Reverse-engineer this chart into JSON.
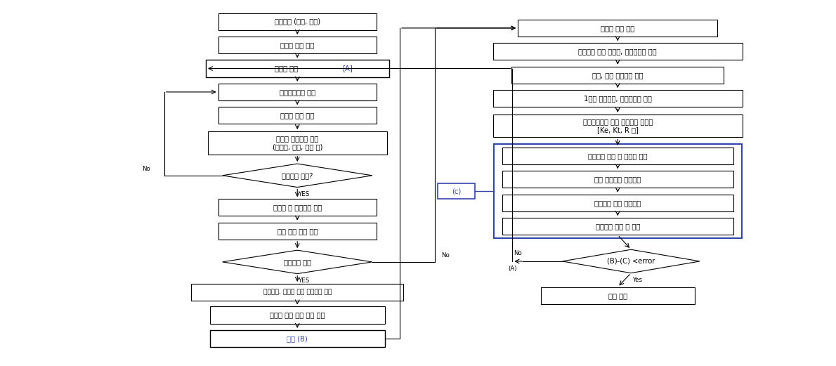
{
  "bg_color": "#ffffff",
  "box_color": "#ffffff",
  "box_edge": "#000000",
  "blue_edge": "#3344aa",
  "text_color": "#000000",
  "blue_text": "#3344aa",
  "font_size": 7.2,
  "left": {
    "b1": [
      0.355,
      0.92,
      0.19,
      0.052,
      "기본사양 (속도, 출력)"
    ],
    "b2": [
      0.355,
      0.848,
      0.19,
      0.052,
      "회전자 형상 결정"
    ],
    "b3": [
      0.355,
      0.776,
      0.22,
      0.052,
      "장하비 설정 [A]"
    ],
    "b4": [
      0.355,
      0.704,
      0.19,
      0.052,
      "공극자속밀도 결정"
    ],
    "b5": [
      0.355,
      0.632,
      0.19,
      0.052,
      "고정자 권선 설계"
    ],
    "b6": [
      0.355,
      0.548,
      0.215,
      0.07,
      "회전자 기본사양 설계\n(단면적, 길이, 두께 등)"
    ],
    "d1": [
      0.355,
      0.448,
      0.18,
      0.072,
      "기본사양 만족?"
    ],
    "b7": [
      0.355,
      0.35,
      0.19,
      0.052,
      "기전력 및 토크상수 계산"
    ],
    "b8": [
      0.355,
      0.278,
      0.19,
      0.052,
      "동선 전류 밀도 계산"
    ],
    "d2": [
      0.355,
      0.183,
      0.18,
      0.072,
      "전류밀도 만족"
    ],
    "b9": [
      0.355,
      0.09,
      0.255,
      0.052,
      "자석계자, 전기자 철심 요크두께 결정"
    ],
    "b10": [
      0.355,
      0.02,
      0.21,
      0.052,
      "전기자 철심 슬롯 면적 계산"
    ],
    "b11": [
      0.355,
      -0.052,
      0.21,
      0.052,
      "결과 (B)"
    ]
  },
  "right": {
    "r1": [
      0.74,
      0.9,
      0.24,
      0.052,
      "전동기 사양 입력"
    ],
    "r2": [
      0.74,
      0.828,
      0.3,
      0.052,
      "자석계자 평균 단면적, 등가치수비 산출"
    ],
    "r3": [
      0.74,
      0.756,
      0.255,
      0.052,
      "누설, 유효 퍼미언스 계산"
    ],
    "r4": [
      0.74,
      0.684,
      0.3,
      0.052,
      "1극의 유효자속, 유효기자력 계산"
    ],
    "r5": [
      0.74,
      0.6,
      0.3,
      0.07,
      "자기회로법에 의한 회로정수 재산출\n[Ke, Kt, R 등]"
    ],
    "r6": [
      0.74,
      0.508,
      0.278,
      0.052,
      "정격시의 토크 및 전기자 전류"
    ],
    "r7": [
      0.74,
      0.436,
      0.278,
      0.052,
      "정격 토크시의 회전속도"
    ],
    "r8": [
      0.74,
      0.364,
      0.278,
      0.052,
      "정격시의 동선 전류밀도"
    ],
    "r9": [
      0.74,
      0.292,
      0.278,
      0.052,
      "정격시의 역률 및 효율"
    ],
    "d3": [
      0.756,
      0.185,
      0.165,
      0.072,
      "(B)-(C) <error"
    ],
    "r10": [
      0.74,
      0.08,
      0.185,
      0.052,
      "설계 완료"
    ]
  }
}
